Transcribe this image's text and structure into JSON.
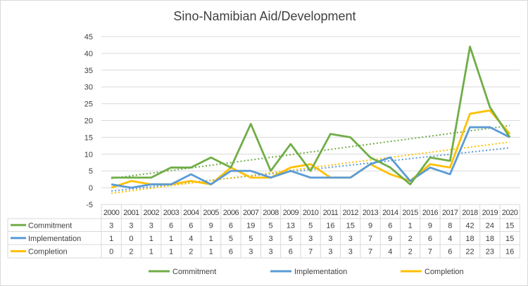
{
  "chart_data": {
    "type": "line",
    "title": "Sino-Namibian Aid/Development",
    "categories": [
      "2000",
      "2001",
      "2002",
      "2003",
      "2004",
      "2005",
      "2006",
      "2007",
      "2008",
      "2009",
      "2010",
      "2011",
      "2012",
      "2013",
      "2014",
      "2015",
      "2016",
      "2017",
      "2018",
      "2019",
      "2020"
    ],
    "ylim": [
      -5,
      45
    ],
    "yticks": [
      "45",
      "40",
      "35",
      "30",
      "25",
      "20",
      "15",
      "10",
      "5",
      "0",
      "-5"
    ],
    "grid": true,
    "legend": "bottom",
    "trendlines": "linear, dotted",
    "data_table": true,
    "series": [
      {
        "name": "Commitment",
        "color": "#70ad47",
        "values": [
          3,
          3,
          3,
          6,
          6,
          9,
          6,
          19,
          5,
          13,
          5,
          16,
          15,
          9,
          6,
          1,
          9,
          8,
          42,
          24,
          15
        ]
      },
      {
        "name": "Implementation",
        "color": "#5b9bd5",
        "values": [
          1,
          0,
          1,
          1,
          4,
          1,
          5,
          5,
          3,
          5,
          3,
          3,
          3,
          7,
          9,
          2,
          6,
          4,
          18,
          18,
          15
        ]
      },
      {
        "name": "Completion",
        "color": "#ffc000",
        "values": [
          0,
          2,
          1,
          1,
          2,
          1,
          6,
          3,
          3,
          6,
          7,
          3,
          3,
          7,
          4,
          2,
          7,
          6,
          22,
          23,
          16
        ]
      }
    ]
  }
}
